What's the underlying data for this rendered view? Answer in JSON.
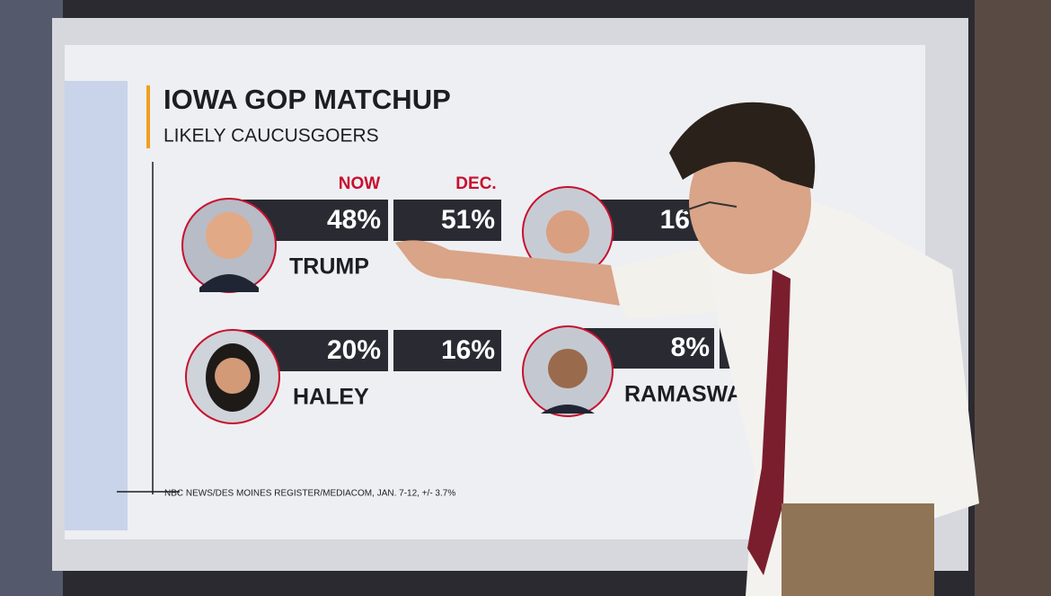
{
  "header": {
    "title": "IOWA GOP MATCHUP",
    "subtitle": "LIKELY CAUCUSGOERS"
  },
  "columns": [
    "NOW",
    "DEC."
  ],
  "candidates": [
    {
      "name": "TRUMP",
      "now": "48%",
      "dec": "51%"
    },
    {
      "name": "HALEY",
      "now": "20%",
      "dec": "16%"
    },
    {
      "now": "16"
    },
    {
      "name": "RAMASWA",
      "now": "8%"
    }
  ],
  "source": "NBC NEWS/DES MOINES REGISTER/MEDIACOM, JAN. 7-12, +/- 3.7%"
}
